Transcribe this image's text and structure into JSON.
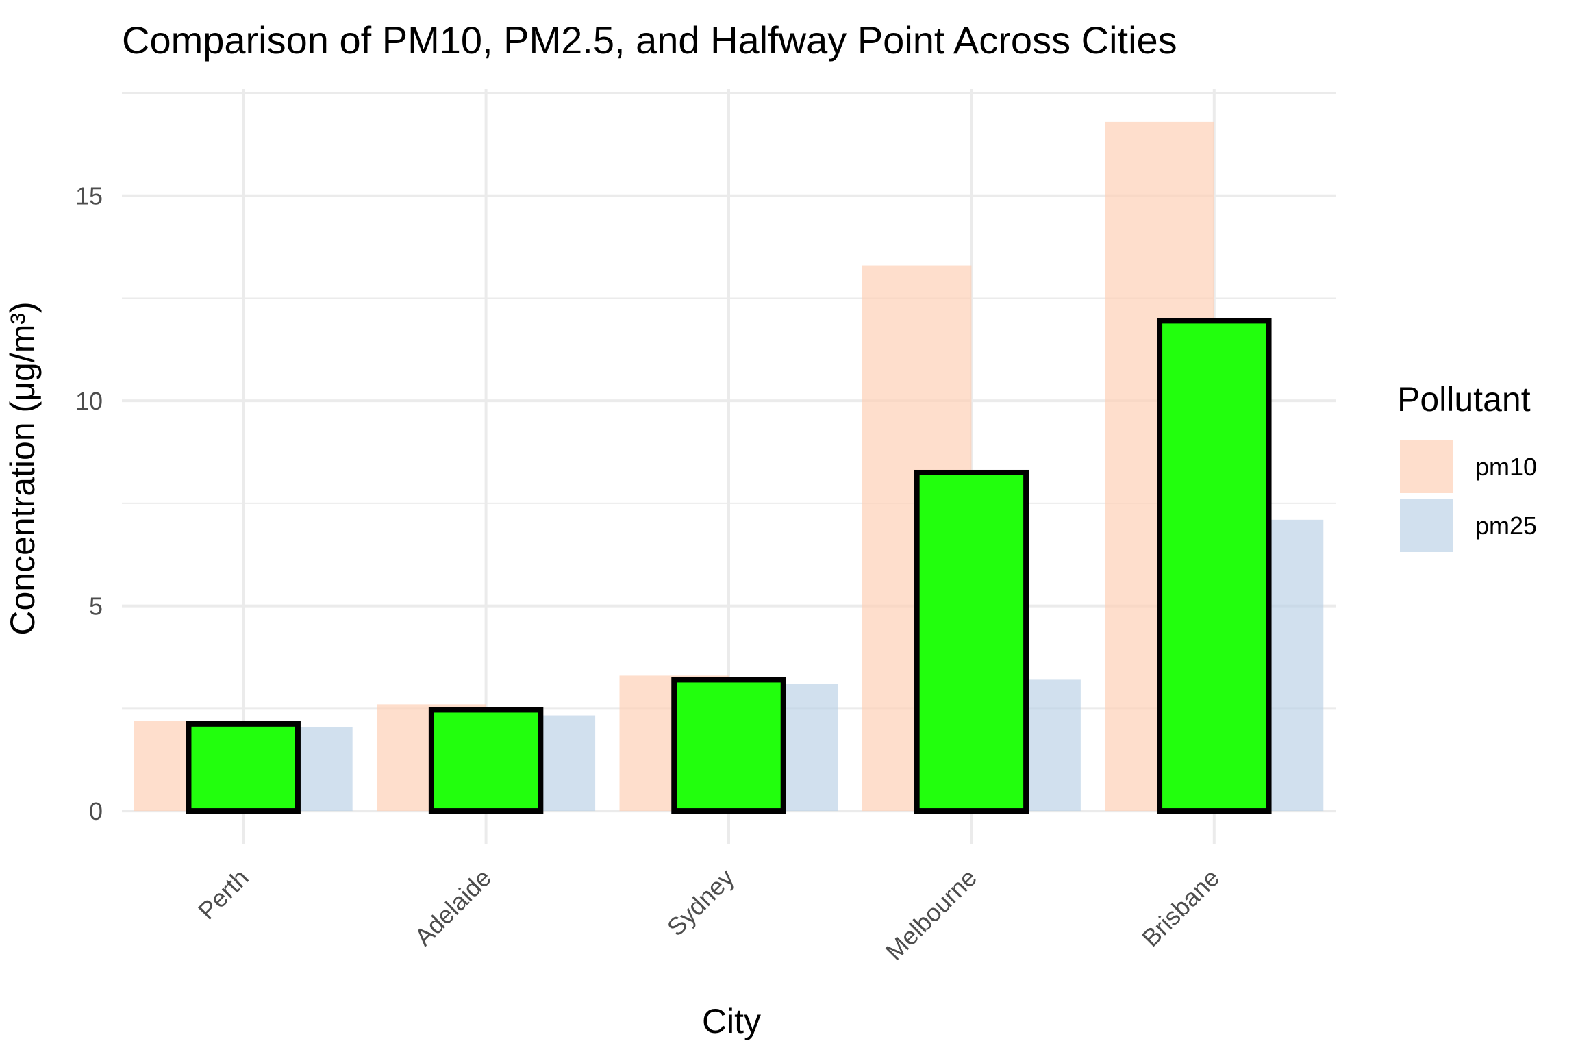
{
  "chart_data": {
    "type": "bar",
    "title": "Comparison of PM10, PM2.5, and Halfway Point Across Cities",
    "xlabel": "City",
    "ylabel": "Concentration (μg/m³)",
    "categories": [
      "Perth",
      "Adelaide",
      "Sydney",
      "Melbourne",
      "Brisbane"
    ],
    "series": [
      {
        "name": "pm10",
        "color": "#fdd0b7",
        "opacity": 0.7,
        "values": [
          2.2,
          2.6,
          3.3,
          13.3,
          16.8
        ]
      },
      {
        "name": "pm25",
        "color": "#b8d0e5",
        "opacity": 0.65,
        "values": [
          2.05,
          2.33,
          3.1,
          3.2,
          7.1
        ]
      }
    ],
    "halfway": {
      "name": "Halfway Point",
      "color": "#22ff0d",
      "outline": "#000000",
      "values": [
        2.125,
        2.465,
        3.2,
        8.25,
        11.95
      ]
    },
    "yticks": [
      0,
      5,
      10,
      15
    ],
    "ylim": [
      -0.8,
      17.6
    ],
    "grid": true,
    "legend": {
      "title": "Pollutant",
      "position": "right"
    }
  }
}
